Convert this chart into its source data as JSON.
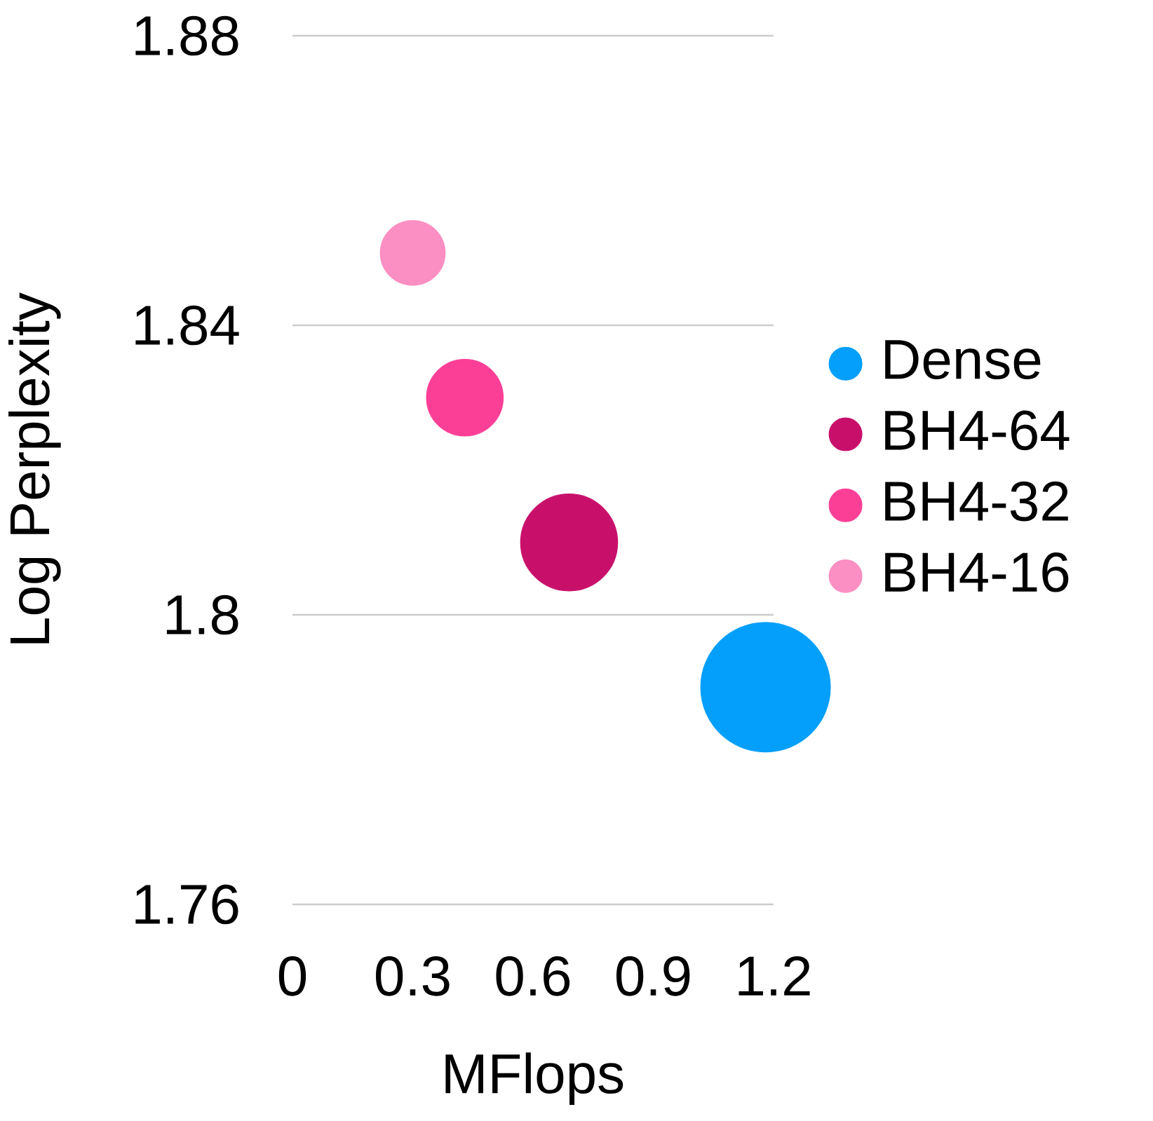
{
  "chart_data": {
    "type": "bubble",
    "xlabel": "MFlops",
    "ylabel": "Log Perplexity",
    "xlim": [
      0,
      1.2
    ],
    "ylim": [
      1.76,
      1.88
    ],
    "xticks": [
      0,
      0.3,
      0.6,
      0.9,
      1.2
    ],
    "yticks": [
      1.76,
      1.8,
      1.84,
      1.88
    ],
    "grid": "y",
    "legend": "right",
    "series": [
      {
        "name": "Dense",
        "color": "#049ffa",
        "x": [
          1.18
        ],
        "values": [
          1.79
        ],
        "sizes": [
          1
        ]
      },
      {
        "name": "BH4-64",
        "color": "#c8106b",
        "x": [
          0.69
        ],
        "values": [
          1.81
        ],
        "sizes": [
          0.56
        ]
      },
      {
        "name": "BH4-32",
        "color": "#fb3f97",
        "x": [
          0.43
        ],
        "values": [
          1.83
        ],
        "sizes": [
          0.35
        ]
      },
      {
        "name": "BH4-16",
        "color": "#fb8ec2",
        "x": [
          0.3
        ],
        "values": [
          1.85
        ],
        "sizes": [
          0.25
        ]
      }
    ]
  }
}
